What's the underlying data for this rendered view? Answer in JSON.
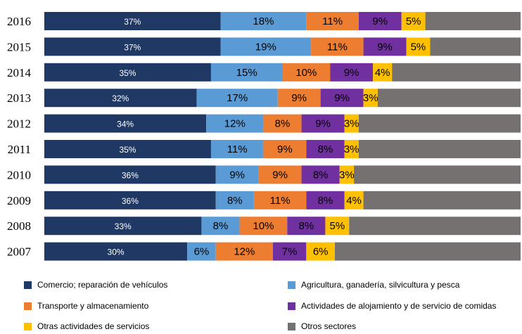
{
  "chart_data": {
    "type": "bar",
    "orientation": "horizontal",
    "stacked": true,
    "normalized": true,
    "categories": [
      "2016",
      "2015",
      "2014",
      "2013",
      "2012",
      "2011",
      "2010",
      "2009",
      "2008",
      "2007"
    ],
    "series": [
      {
        "name": "Comercio; reparación de vehículos",
        "color": "#203864",
        "values": [
          37,
          37,
          35,
          32,
          34,
          35,
          36,
          36,
          33,
          30
        ],
        "labels": [
          "37%",
          "37%",
          "35%",
          "32%",
          "34%",
          "35%",
          "36%",
          "36%",
          "33%",
          "30%"
        ]
      },
      {
        "name": "Agricultura, ganadería,  silvicultura  y pesca",
        "color": "#5B9BD5",
        "values": [
          18,
          19,
          15,
          17,
          12,
          11,
          9,
          8,
          8,
          6
        ],
        "labels": [
          "18%",
          "19%",
          "15%",
          "17%",
          "12%",
          "11%",
          "9%",
          "8%",
          "8%",
          "6%"
        ]
      },
      {
        "name": "Transporte y almacenamiento",
        "color": "#ED7D31",
        "values": [
          11,
          11,
          10,
          9,
          8,
          9,
          9,
          11,
          10,
          12
        ],
        "labels": [
          "11%",
          "11%",
          "10%",
          "9%",
          "8%",
          "9%",
          "9%",
          "11%",
          "10%",
          "12%"
        ]
      },
      {
        "name": "Actividades  de alojamiento y de servicio de comidas",
        "color": "#7030A0",
        "values": [
          9,
          9,
          9,
          9,
          9,
          8,
          8,
          8,
          8,
          7
        ],
        "labels": [
          "9%",
          "9%",
          "9%",
          "9%",
          "9%",
          "8%",
          "8%",
          "8%",
          "8%",
          "7%"
        ]
      },
      {
        "name": "Otras actividades  de servicios",
        "color": "#FFC000",
        "values": [
          5,
          5,
          4,
          3,
          3,
          3,
          3,
          4,
          5,
          6
        ],
        "labels": [
          "5%",
          "5%",
          "4%",
          "3%",
          "3%",
          "3%",
          "3%",
          "4%",
          "5%",
          "6%"
        ]
      },
      {
        "name": "Otros sectores",
        "color": "#767171",
        "values": [
          20,
          19,
          27,
          30,
          34,
          34,
          35,
          33,
          36,
          39
        ],
        "labels": [
          "",
          "",
          "",
          "",
          "",
          "",
          "",
          "",
          "",
          ""
        ]
      }
    ],
    "xlim": [
      0,
      100
    ],
    "grid": false,
    "legend_position": "bottom"
  }
}
